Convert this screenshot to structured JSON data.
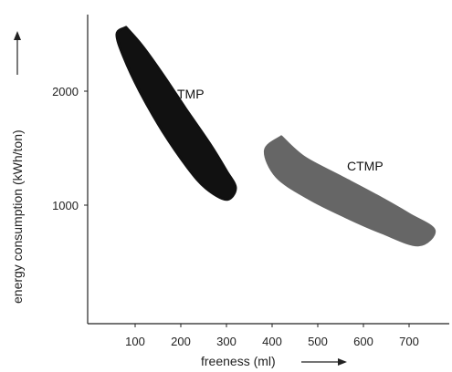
{
  "chart_data": {
    "type": "area",
    "title": "",
    "xlabel": "freeness (ml)",
    "ylabel": "energy consumption (kWh/ton)",
    "xlim": [
      0,
      790
    ],
    "ylim": [
      0,
      2600
    ],
    "xticks": [
      100,
      200,
      300,
      400,
      500,
      600,
      700
    ],
    "yticks": [
      1000,
      2000
    ],
    "grid": false,
    "legend": "none",
    "series": [
      {
        "name": "TMP",
        "color": "#111111",
        "upper": [
          {
            "x": 80,
            "y": 2560
          },
          {
            "x": 115,
            "y": 2400
          },
          {
            "x": 160,
            "y": 2150
          },
          {
            "x": 210,
            "y": 1850
          },
          {
            "x": 265,
            "y": 1530
          },
          {
            "x": 300,
            "y": 1300
          },
          {
            "x": 320,
            "y": 1150
          }
        ],
        "lower": [
          {
            "x": 60,
            "y": 2500
          },
          {
            "x": 75,
            "y": 2300
          },
          {
            "x": 110,
            "y": 2000
          },
          {
            "x": 160,
            "y": 1650
          },
          {
            "x": 215,
            "y": 1330
          },
          {
            "x": 255,
            "y": 1150
          },
          {
            "x": 300,
            "y": 1050
          }
        ]
      },
      {
        "name": "CTMP",
        "color": "#666666",
        "upper": [
          {
            "x": 420,
            "y": 1600
          },
          {
            "x": 470,
            "y": 1420
          },
          {
            "x": 550,
            "y": 1250
          },
          {
            "x": 630,
            "y": 1080
          },
          {
            "x": 700,
            "y": 920
          },
          {
            "x": 755,
            "y": 780
          }
        ],
        "lower": [
          {
            "x": 385,
            "y": 1480
          },
          {
            "x": 410,
            "y": 1250
          },
          {
            "x": 480,
            "y": 1060
          },
          {
            "x": 560,
            "y": 900
          },
          {
            "x": 640,
            "y": 760
          },
          {
            "x": 720,
            "y": 650
          }
        ]
      }
    ]
  }
}
